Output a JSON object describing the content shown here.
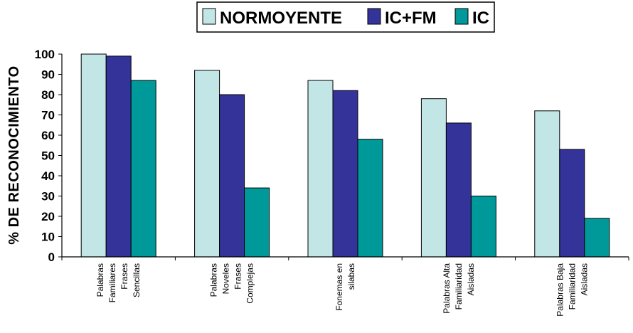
{
  "chart_data": {
    "type": "bar",
    "title": "",
    "xlabel": "",
    "ylabel": "% DE RECONOCIMIENTO",
    "ylim": [
      0,
      100
    ],
    "yticks": [
      0,
      10,
      20,
      30,
      40,
      50,
      60,
      70,
      80,
      90,
      100
    ],
    "grid": false,
    "legend_position": "top",
    "categories": [
      [
        "Palabras",
        "Familiares",
        "Frases",
        "Sencillas"
      ],
      [
        "Palabras",
        "Noveles",
        "Frases",
        "Complejas"
      ],
      [
        "Fonemas en",
        "silabas"
      ],
      [
        "Palabras Alta",
        "Familiaridad",
        "Aisladas"
      ],
      [
        "Palabras Baja",
        "Familiaridad",
        "Aisladas"
      ]
    ],
    "series": [
      {
        "name": "NORMOYENTE",
        "color": "#c2e6e6",
        "values": [
          100,
          92,
          87,
          78,
          72
        ]
      },
      {
        "name": "IC+FM",
        "color": "#33339a",
        "values": [
          99,
          80,
          82,
          66,
          53
        ]
      },
      {
        "name": "IC",
        "color": "#009999",
        "values": [
          87,
          34,
          58,
          30,
          19
        ]
      }
    ]
  }
}
